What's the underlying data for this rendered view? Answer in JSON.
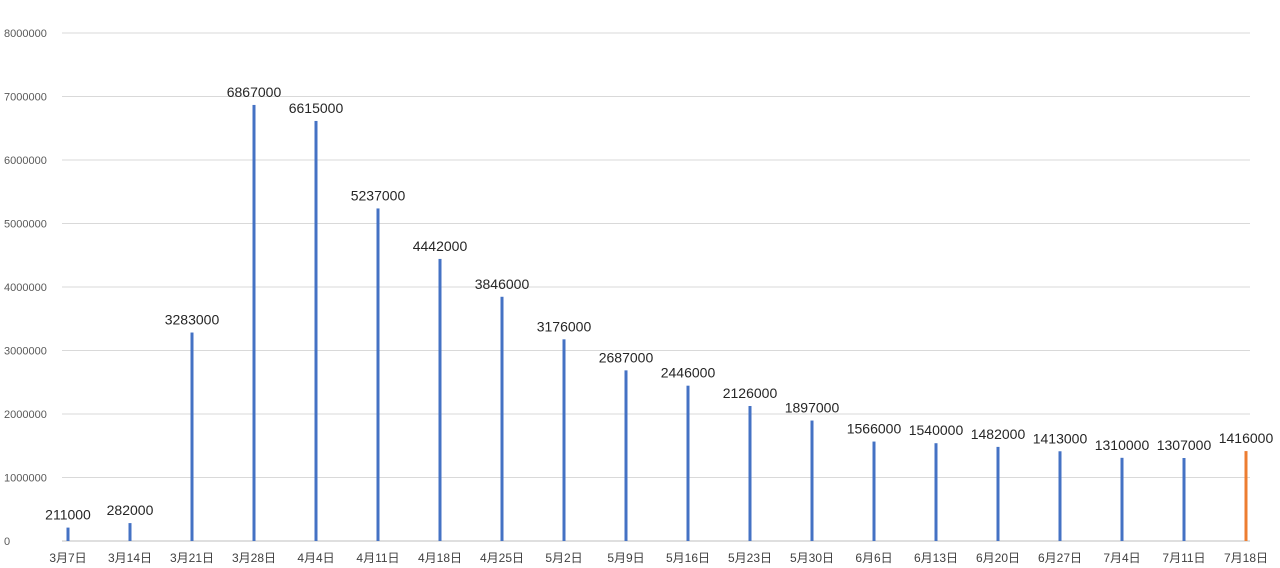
{
  "chart_data": {
    "type": "bar",
    "title": "",
    "xlabel": "",
    "ylabel": "",
    "ylim": [
      0,
      8000000
    ],
    "yticks": [
      0,
      1000000,
      2000000,
      3000000,
      4000000,
      5000000,
      6000000,
      7000000,
      8000000
    ],
    "ytick_labels": [
      "0",
      "1000000",
      "2000000",
      "3000000",
      "4000000",
      "5000000",
      "6000000",
      "7000000",
      "8000000"
    ],
    "grid": true,
    "legend": "none",
    "categories": [
      "3月7日",
      "3月14日",
      "3月21日",
      "3月28日",
      "4月4日",
      "4月11日",
      "4月18日",
      "4月25日",
      "5月2日",
      "5月9日",
      "5月16日",
      "5月23日",
      "5月30日",
      "6月6日",
      "6月13日",
      "6月20日",
      "6月27日",
      "7月4日",
      "7月11日",
      "7月18日"
    ],
    "values": [
      211000,
      282000,
      3283000,
      6867000,
      6615000,
      5237000,
      4442000,
      3846000,
      3176000,
      2687000,
      2446000,
      2126000,
      1897000,
      1566000,
      1540000,
      1482000,
      1413000,
      1310000,
      1307000,
      1416000
    ],
    "data_labels": [
      "211000",
      "282000",
      "3283000",
      "6867000",
      "6615000",
      "5237000",
      "4442000",
      "3846000",
      "3176000",
      "2687000",
      "2446000",
      "2126000",
      "1897000",
      "1566000",
      "1540000",
      "1482000",
      "1413000",
      "1310000",
      "1307000",
      "1416000"
    ],
    "colors": {
      "bar": "#4472c4",
      "highlight": "#ed7d31",
      "grid": "#d9d9d9"
    },
    "highlight_indices": [
      19
    ]
  }
}
